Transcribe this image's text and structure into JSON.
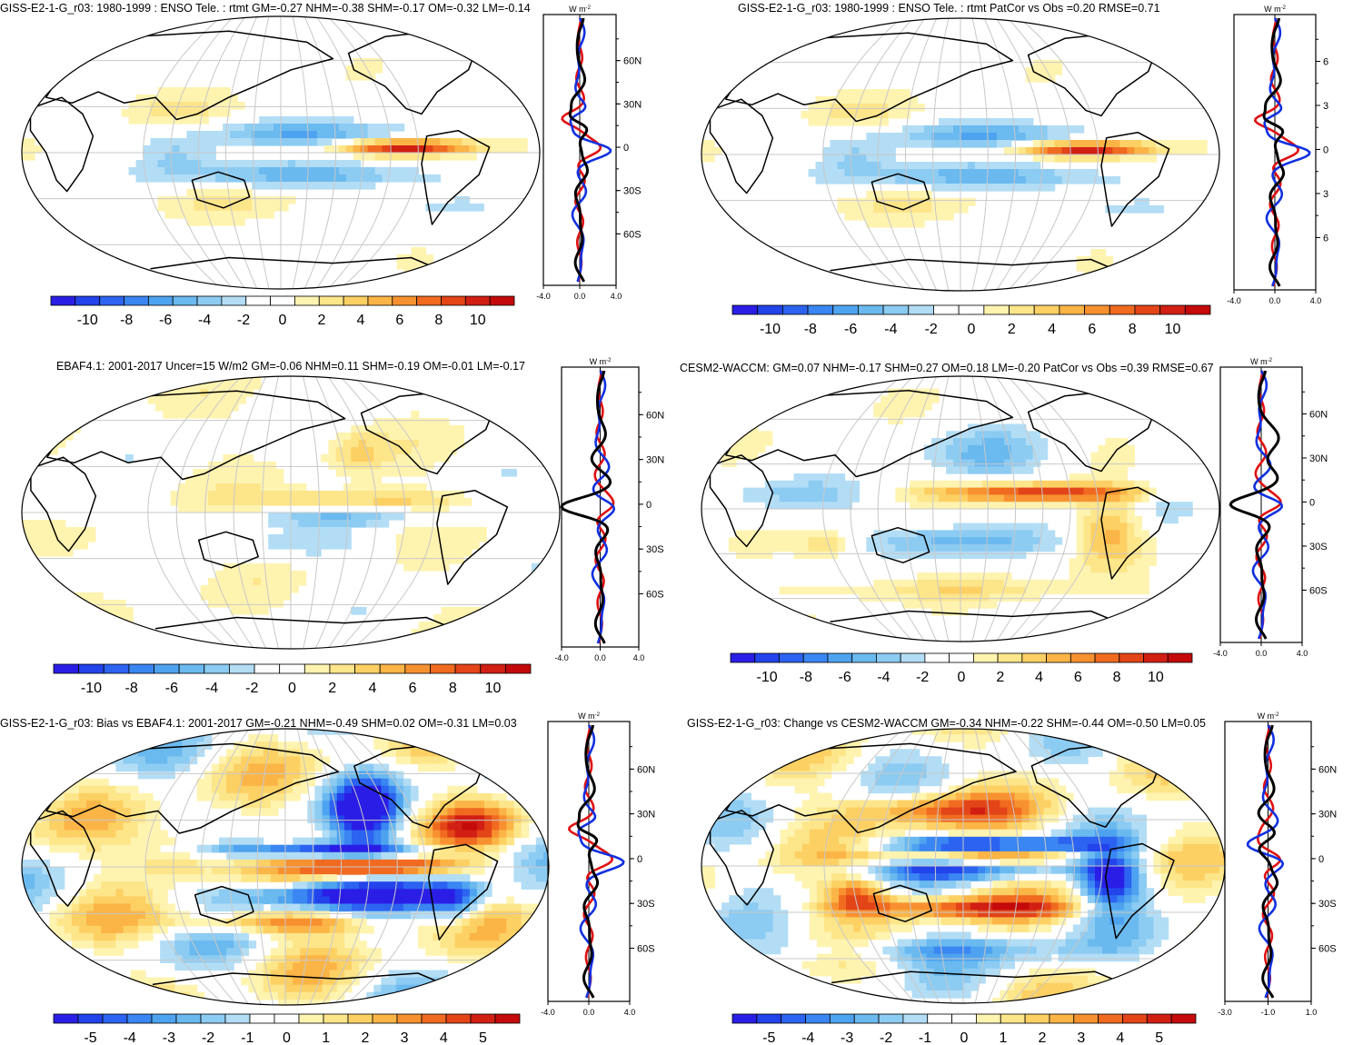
{
  "palette": {
    "colors": [
      "#2a1ee6",
      "#2343eb",
      "#2c63f0",
      "#3a86f2",
      "#4ea3f0",
      "#6ab9ef",
      "#8ccbf2",
      "#b2ddf5",
      "#ffffff",
      "#ffffff",
      "#fff3b0",
      "#fde58a",
      "#fdd064",
      "#fbb446",
      "#f79130",
      "#f06a20",
      "#e34418",
      "#d11f14",
      "#c40a0a"
    ]
  },
  "panels": [
    {
      "title": "GISS-E2-1-G_r03: 1980-1999 : ENSO Tele. : rtmt GM=-0.27 NHM=-0.38 SHM=-0.17 OM=-0.32 LM=-0.14",
      "pattern": "enso",
      "profile_unit": "W m",
      "profile_unit_sup": "-2",
      "lat_labels": [
        "60N",
        "30N",
        "0",
        "30S",
        "60S"
      ],
      "x_ticks": [
        "-4.0",
        "0.0",
        "4.0"
      ],
      "cbar_labels": [
        "-10",
        "-8",
        "-6",
        "-4",
        "-2",
        "0",
        "2",
        "4",
        "6",
        "8",
        "10"
      ]
    },
    {
      "title": "GISS-E2-1-G_r03: 1980-1999 : ENSO Tele. : rtmt PatCor vs Obs =0.20 RMSE=0.71",
      "pattern": "enso",
      "profile_unit": "W m",
      "profile_unit_sup": "-2",
      "lat_labels": [
        "6",
        "3",
        "0",
        "3",
        "6"
      ],
      "x_ticks": [
        "-4.0",
        "0.0",
        "4.0"
      ],
      "cbar_labels": [
        "-10",
        "-8",
        "-6",
        "-4",
        "-2",
        "0",
        "2",
        "4",
        "6",
        "8",
        "10"
      ]
    },
    {
      "title": "EBAF4.1: 2001-2017 Uncer=15 W/m2 GM=-0.06 NHM=0.11 SHM=-0.19 OM=-0.01 LM=-0.17",
      "pattern": "obs",
      "profile_unit": "W m",
      "profile_unit_sup": "-2",
      "lat_labels": [
        "60N",
        "30N",
        "0",
        "30S",
        "60S"
      ],
      "x_ticks": [
        "-4.0",
        "0.0",
        "4.0"
      ],
      "cbar_labels": [
        "-10",
        "-8",
        "-6",
        "-4",
        "-2",
        "0",
        "2",
        "4",
        "6",
        "8",
        "10"
      ]
    },
    {
      "title": "CESM2-WACCM: GM=0.07 NHM=-0.17 SHM=0.27 OM=0.18 LM=-0.20 PatCor vs Obs =0.39 RMSE=0.67",
      "pattern": "cesm",
      "profile_unit": "W m",
      "profile_unit_sup": "-2",
      "lat_labels": [
        "60N",
        "30N",
        "0",
        "30S",
        "60S"
      ],
      "x_ticks": [
        "-4.0",
        "0.0",
        "4.0"
      ],
      "cbar_labels": [
        "-10",
        "-8",
        "-6",
        "-4",
        "-2",
        "0",
        "2",
        "4",
        "6",
        "8",
        "10"
      ]
    },
    {
      "title": "GISS-E2-1-G_r03: Bias vs EBAF4.1: 2001-2017 GM=-0.21 NHM=-0.49 SHM=0.02 OM=-0.31 LM=0.03",
      "pattern": "bias",
      "profile_unit": "W m",
      "profile_unit_sup": "-2",
      "lat_labels": [
        "60N",
        "30N",
        "0",
        "30S",
        "60S"
      ],
      "x_ticks": [
        "-4.0",
        "0.0",
        "4.0"
      ],
      "cbar_labels": [
        "-5",
        "-4",
        "-3",
        "-2",
        "-1",
        "0",
        "1",
        "2",
        "3",
        "4",
        "5"
      ]
    },
    {
      "title": "GISS-E2-1-G_r03: Change vs CESM2-WACCM GM=-0.34 NHM=-0.22 SHM=-0.44 OM=-0.50 LM=0.05",
      "pattern": "change",
      "profile_unit": "W m",
      "profile_unit_sup": "-2",
      "lat_labels": [
        "60N",
        "30N",
        "0",
        "30S",
        "60S"
      ],
      "x_ticks": [
        "-3.0",
        "-1.0",
        "1.0"
      ],
      "cbar_labels": [
        "-5",
        "-4",
        "-3",
        "-2",
        "-1",
        "0",
        "1",
        "2",
        "3",
        "4",
        "5"
      ]
    }
  ]
}
